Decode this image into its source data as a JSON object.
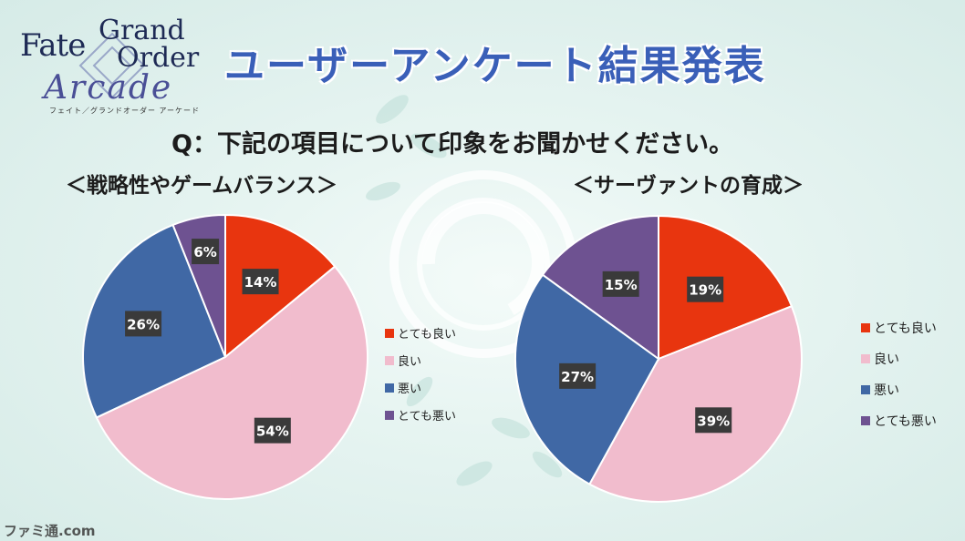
{
  "logo": {
    "fate": "Fate",
    "grand": "Grand",
    "order": "Order",
    "arcade": "Arcade",
    "kana": "フェイト／グランドオーダー アーケード"
  },
  "title": "ユーザーアンケート結果発表",
  "question": "Q：下記の項目について印象をお聞かせください。",
  "watermark": "ファミ通.com",
  "colors": {
    "very_good": "#e8350f",
    "good": "#f1bccd",
    "bad": "#4068a5",
    "very_bad": "#6e5291",
    "title": "#3a5fb8"
  },
  "chart_data": [
    {
      "type": "pie",
      "title": "＜戦略性やゲームバランス＞",
      "legend_position": "right",
      "categories": [
        "とても良い",
        "良い",
        "悪い",
        "とても悪い"
      ],
      "values": [
        14,
        54,
        26,
        6
      ],
      "labels": [
        "14%",
        "54%",
        "26%",
        "6%"
      ],
      "colors": [
        "#e8350f",
        "#f1bccd",
        "#4068a5",
        "#6e5291"
      ]
    },
    {
      "type": "pie",
      "title": "＜サーヴァントの育成＞",
      "legend_position": "right",
      "categories": [
        "とても良い",
        "良い",
        "悪い",
        "とても悪い"
      ],
      "values": [
        19,
        39,
        27,
        15
      ],
      "labels": [
        "19%",
        "39%",
        "27%",
        "15%"
      ],
      "colors": [
        "#e8350f",
        "#f1bccd",
        "#4068a5",
        "#6e5291"
      ]
    }
  ]
}
